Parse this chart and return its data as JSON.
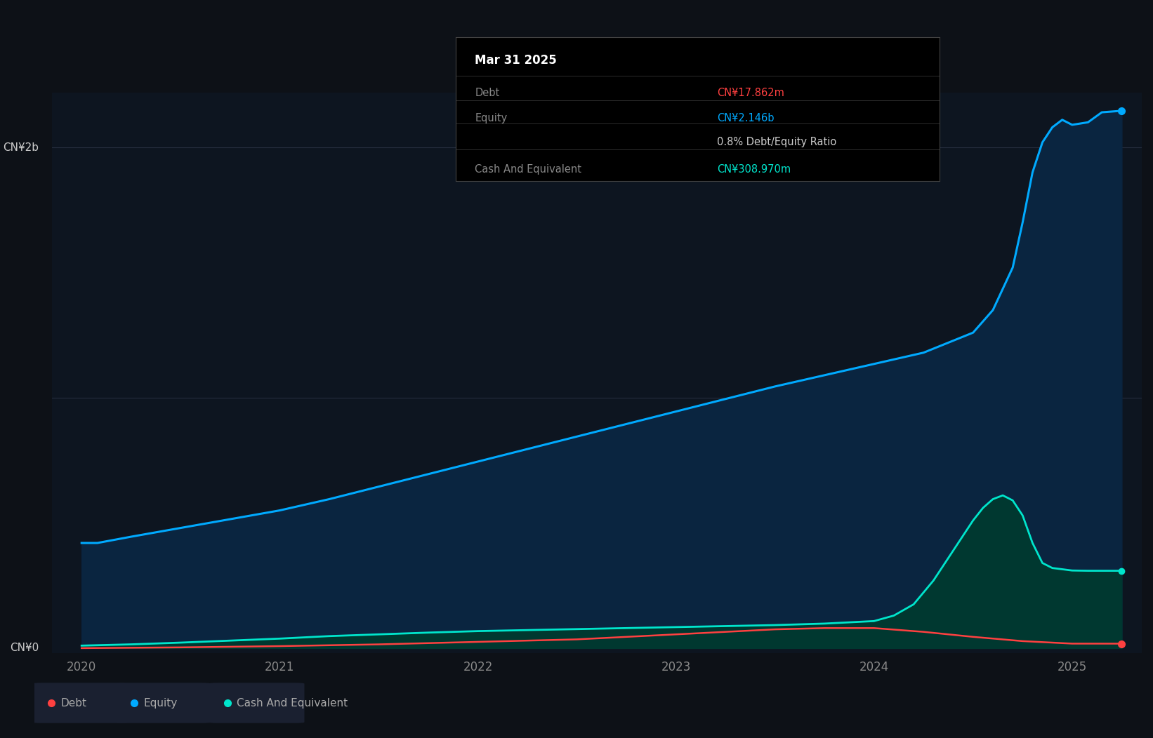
{
  "background_color": "#0d1117",
  "plot_bg_color": "#0d1520",
  "grid_color": "#252d3d",
  "y_label_2b": "CN¥2b",
  "y_label_0": "CN¥0",
  "x_ticks": [
    2020,
    2021,
    2022,
    2023,
    2024,
    2025
  ],
  "tooltip": {
    "date": "Mar 31 2025",
    "debt_label": "Debt",
    "debt_value": "CN¥17.862m",
    "debt_color": "#ff4040",
    "equity_label": "Equity",
    "equity_value": "CN¥2.146b",
    "equity_color": "#00aaff",
    "ratio_text": "0.8% Debt/Equity Ratio",
    "ratio_color": "#cccccc",
    "cash_label": "Cash And Equivalent",
    "cash_value": "CN¥308.970m",
    "cash_color": "#00e5cc",
    "bg": "#000000"
  },
  "equity_color": "#00aaff",
  "equity_fill": "#0a2540",
  "equity_x": [
    2020.0,
    2020.08,
    2020.25,
    2020.5,
    2020.75,
    2021.0,
    2021.25,
    2021.5,
    2021.75,
    2022.0,
    2022.25,
    2022.5,
    2022.75,
    2023.0,
    2023.25,
    2023.5,
    2023.75,
    2024.0,
    2024.25,
    2024.5,
    2024.6,
    2024.7,
    2024.75,
    2024.8,
    2024.85,
    2024.9,
    2024.95,
    2025.0,
    2025.08,
    2025.15,
    2025.25
  ],
  "equity_y": [
    420000000.0,
    420000000.0,
    445000000.0,
    480000000.0,
    515000000.0,
    550000000.0,
    595000000.0,
    645000000.0,
    695000000.0,
    745000000.0,
    795000000.0,
    845000000.0,
    895000000.0,
    945000000.0,
    995000000.0,
    1045000000.0,
    1090000000.0,
    1135000000.0,
    1180000000.0,
    1260000000.0,
    1350000000.0,
    1520000000.0,
    1700000000.0,
    1900000000.0,
    2020000000.0,
    2080000000.0,
    2110000000.0,
    2090000000.0,
    2100000000.0,
    2140000000.0,
    2146000000.0
  ],
  "debt_color": "#ff4040",
  "debt_fill": "#2a0a0a",
  "debt_x": [
    2020.0,
    2020.5,
    2021.0,
    2021.5,
    2022.0,
    2022.5,
    2023.0,
    2023.25,
    2023.5,
    2023.75,
    2024.0,
    2024.25,
    2024.5,
    2024.75,
    2025.0,
    2025.25
  ],
  "debt_y": [
    0,
    3000000.0,
    8000000.0,
    15000000.0,
    25000000.0,
    35000000.0,
    55000000.0,
    65000000.0,
    75000000.0,
    80000000.0,
    80000000.0,
    65000000.0,
    45000000.0,
    28000000.0,
    18000000.0,
    17862000.0
  ],
  "cash_color": "#00e5cc",
  "cash_fill": "#003830",
  "cash_x": [
    2020.0,
    2020.25,
    2020.5,
    2020.75,
    2021.0,
    2021.25,
    2021.5,
    2021.75,
    2022.0,
    2022.25,
    2022.5,
    2022.75,
    2023.0,
    2023.25,
    2023.5,
    2023.75,
    2024.0,
    2024.1,
    2024.2,
    2024.3,
    2024.4,
    2024.5,
    2024.55,
    2024.6,
    2024.65,
    2024.7,
    2024.75,
    2024.8,
    2024.85,
    2024.9,
    2024.95,
    2025.0,
    2025.08,
    2025.15,
    2025.25
  ],
  "cash_y": [
    10000000.0,
    15000000.0,
    22000000.0,
    30000000.0,
    38000000.0,
    48000000.0,
    55000000.0,
    62000000.0,
    68000000.0,
    72000000.0,
    76000000.0,
    80000000.0,
    84000000.0,
    88000000.0,
    92000000.0,
    98000000.0,
    108000000.0,
    130000000.0,
    175000000.0,
    270000000.0,
    390000000.0,
    510000000.0,
    560000000.0,
    595000000.0,
    610000000.0,
    590000000.0,
    530000000.0,
    420000000.0,
    340000000.0,
    320000000.0,
    315000000.0,
    310000000.0,
    309000000.0,
    308970000.0,
    308970000.0
  ],
  "legend": [
    {
      "label": "Debt",
      "color": "#ff4040"
    },
    {
      "label": "Equity",
      "color": "#00aaff"
    },
    {
      "label": "Cash And Equivalent",
      "color": "#00e5cc"
    }
  ]
}
